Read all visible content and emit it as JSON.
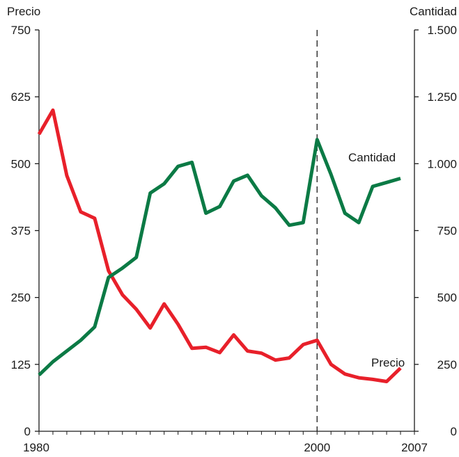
{
  "chart_data": {
    "type": "line",
    "x_range": [
      1980,
      2007
    ],
    "x_tick_labels": [
      "1980",
      "2000",
      "2007"
    ],
    "x_ticks": [
      1980,
      2000,
      2007
    ],
    "reference_line_x": 2000,
    "left_axis": {
      "title": "Precio",
      "range": [
        0,
        750
      ],
      "ticks": [
        0,
        125,
        250,
        375,
        500,
        625,
        750
      ],
      "tick_labels": [
        "0",
        "125",
        "250",
        "375",
        "500",
        "625",
        "750"
      ]
    },
    "right_axis": {
      "title": "Cantidad",
      "range": [
        0,
        1500
      ],
      "ticks": [
        0,
        250,
        500,
        750,
        1000,
        1250,
        1500
      ],
      "tick_labels": [
        "0",
        "250",
        "500",
        "750",
        "1.000",
        "1.250",
        "1.500"
      ]
    },
    "series": [
      {
        "name": "Precio",
        "axis": "left",
        "color": "#e8202a",
        "points": [
          [
            1980,
            555
          ],
          [
            1981,
            600
          ],
          [
            1982,
            478
          ],
          [
            1983,
            410
          ],
          [
            1984,
            398
          ],
          [
            1985,
            300
          ],
          [
            1986,
            255
          ],
          [
            1987,
            228
          ],
          [
            1988,
            193
          ],
          [
            1989,
            238
          ],
          [
            1990,
            200
          ],
          [
            1991,
            155
          ],
          [
            1992,
            157
          ],
          [
            1993,
            147
          ],
          [
            1994,
            180
          ],
          [
            1995,
            150
          ],
          [
            1996,
            146
          ],
          [
            1997,
            133
          ],
          [
            1998,
            137
          ],
          [
            1999,
            162
          ],
          [
            2000,
            170
          ],
          [
            2001,
            125
          ],
          [
            2002,
            107
          ],
          [
            2003,
            100
          ],
          [
            2004,
            97
          ],
          [
            2005,
            93
          ],
          [
            2006,
            118
          ]
        ]
      },
      {
        "name": "Cantidad",
        "axis": "right",
        "color": "#0b7a45",
        "points": [
          [
            1980,
            210
          ],
          [
            1981,
            260
          ],
          [
            1982,
            300
          ],
          [
            1983,
            340
          ],
          [
            1984,
            390
          ],
          [
            1985,
            575
          ],
          [
            1986,
            610
          ],
          [
            1987,
            650
          ],
          [
            1988,
            890
          ],
          [
            1989,
            925
          ],
          [
            1990,
            990
          ],
          [
            1991,
            1005
          ],
          [
            1992,
            815
          ],
          [
            1993,
            840
          ],
          [
            1994,
            935
          ],
          [
            1995,
            957
          ],
          [
            1996,
            880
          ],
          [
            1997,
            835
          ],
          [
            1998,
            770
          ],
          [
            1999,
            780
          ],
          [
            2000,
            1090
          ],
          [
            2001,
            960
          ],
          [
            2002,
            815
          ],
          [
            2003,
            780
          ],
          [
            2004,
            915
          ],
          [
            2005,
            930
          ],
          [
            2006,
            945
          ]
        ]
      }
    ]
  }
}
